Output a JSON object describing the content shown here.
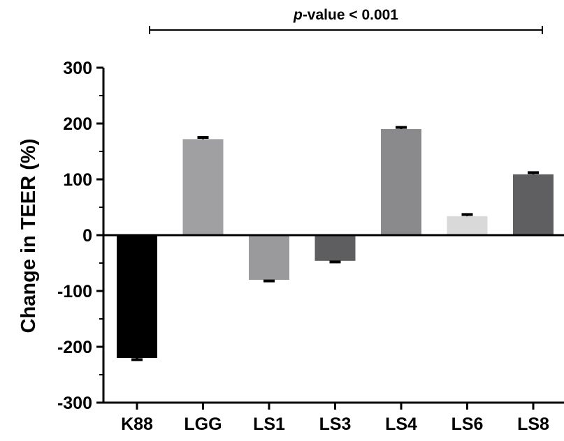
{
  "chart_data": {
    "type": "bar",
    "categories": [
      "K88",
      "LGG",
      "LS1",
      "LS3",
      "LS4",
      "LS6",
      "LS8"
    ],
    "values": [
      -220,
      172,
      -80,
      -46,
      190,
      34,
      109
    ],
    "errors": [
      3,
      3,
      2,
      2,
      3,
      3,
      3
    ],
    "colors": [
      "#000000",
      "#a0a0a2",
      "#9a9a9c",
      "#5e5e60",
      "#8a8a8c",
      "#d9d9d9",
      "#5f5f61"
    ],
    "title": "",
    "xlabel": "",
    "ylabel": "Change in TEER (%)",
    "ylim": [
      -300,
      300
    ],
    "yticks": [
      "300",
      "200",
      "100",
      "0",
      "-100",
      "-200",
      "-300"
    ],
    "grid": false,
    "annotation": {
      "p_label": "p",
      "rest_label": "-value < 0.001",
      "from": "K88",
      "to": "LS8"
    }
  }
}
